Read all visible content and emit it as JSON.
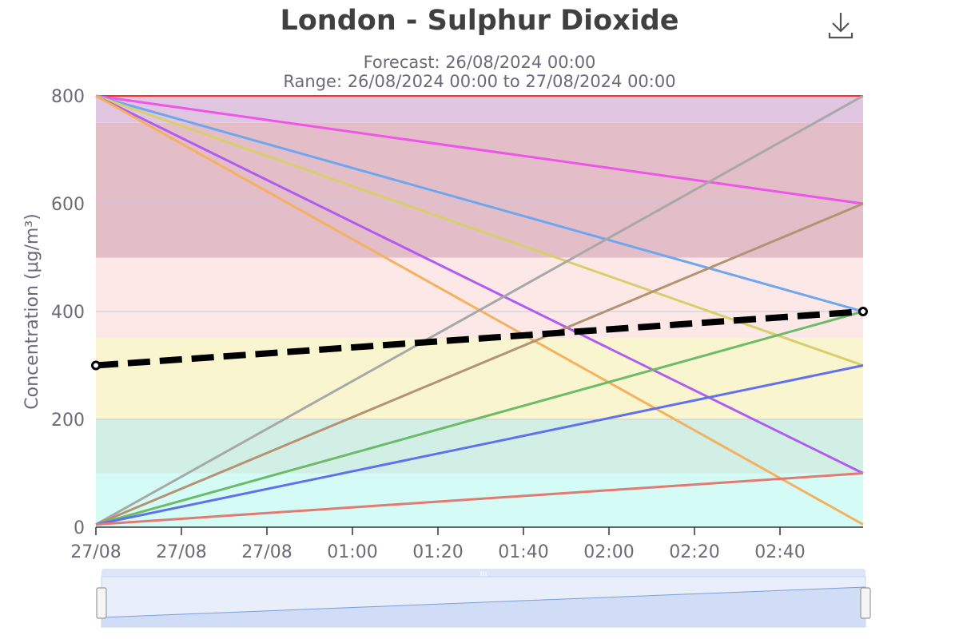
{
  "header": {
    "title": "London - Sulphur Dioxide",
    "subtitle_forecast": "Forecast: 26/08/2024 00:00",
    "subtitle_range": "Range: 26/08/2024 00:00 to 27/08/2024 00:00",
    "download_icon": "download-icon"
  },
  "chart_data": {
    "type": "line",
    "title": "London - Sulphur Dioxide",
    "subtitle": [
      "Forecast: 26/08/2024 00:00",
      "Range: 26/08/2024 00:00 to 27/08/2024 00:00"
    ],
    "xlabel": "",
    "ylabel": "Concentration (μg/m³)",
    "x_tick_labels": [
      "27/08",
      "27/08",
      "27/08",
      "01:00",
      "01:20",
      "01:40",
      "02:00",
      "02:20",
      "02:40"
    ],
    "x": [
      "start",
      "end"
    ],
    "ylim": [
      0,
      800
    ],
    "y_ticks": [
      0,
      200,
      400,
      600,
      800
    ],
    "grid": true,
    "legend": "none",
    "bands": [
      {
        "from": 0,
        "to": 100,
        "color": "#d4fbf5"
      },
      {
        "from": 100,
        "to": 200,
        "color": "#d2efe6"
      },
      {
        "from": 200,
        "to": 350,
        "color": "#f9f5ce"
      },
      {
        "from": 350,
        "to": 500,
        "color": "#fde8e8"
      },
      {
        "from": 500,
        "to": 750,
        "color": "#e3bdc8"
      },
      {
        "from": 750,
        "to": 800,
        "color": "#e0c6e0"
      }
    ],
    "series": [
      {
        "values": [
          800,
          800
        ],
        "color": "#ff2a2a",
        "width": 2
      },
      {
        "values": [
          800,
          600
        ],
        "color": "#ee55e8",
        "width": 3
      },
      {
        "values": [
          800,
          400
        ],
        "color": "#6fa6f0",
        "width": 3
      },
      {
        "values": [
          800,
          300
        ],
        "color": "#d9cf6a",
        "width": 3
      },
      {
        "values": [
          800,
          100
        ],
        "color": "#b15cf0",
        "width": 3
      },
      {
        "values": [
          800,
          5
        ],
        "color": "#f5b060",
        "width": 3
      },
      {
        "values": [
          5,
          800
        ],
        "color": "#a8a8a8",
        "width": 3
      },
      {
        "values": [
          5,
          600
        ],
        "color": "#b39372",
        "width": 3
      },
      {
        "values": [
          5,
          400
        ],
        "color": "#6bbb68",
        "width": 3
      },
      {
        "values": [
          5,
          300
        ],
        "color": "#6070ef",
        "width": 3
      },
      {
        "values": [
          5,
          100
        ],
        "color": "#e37a72",
        "width": 3
      },
      {
        "values": [
          300,
          400
        ],
        "color": "#000000",
        "width": 8,
        "dashed": true,
        "markers": true
      }
    ],
    "navigator": {
      "values": [
        0,
        800
      ],
      "range": [
        0,
        1
      ]
    }
  }
}
